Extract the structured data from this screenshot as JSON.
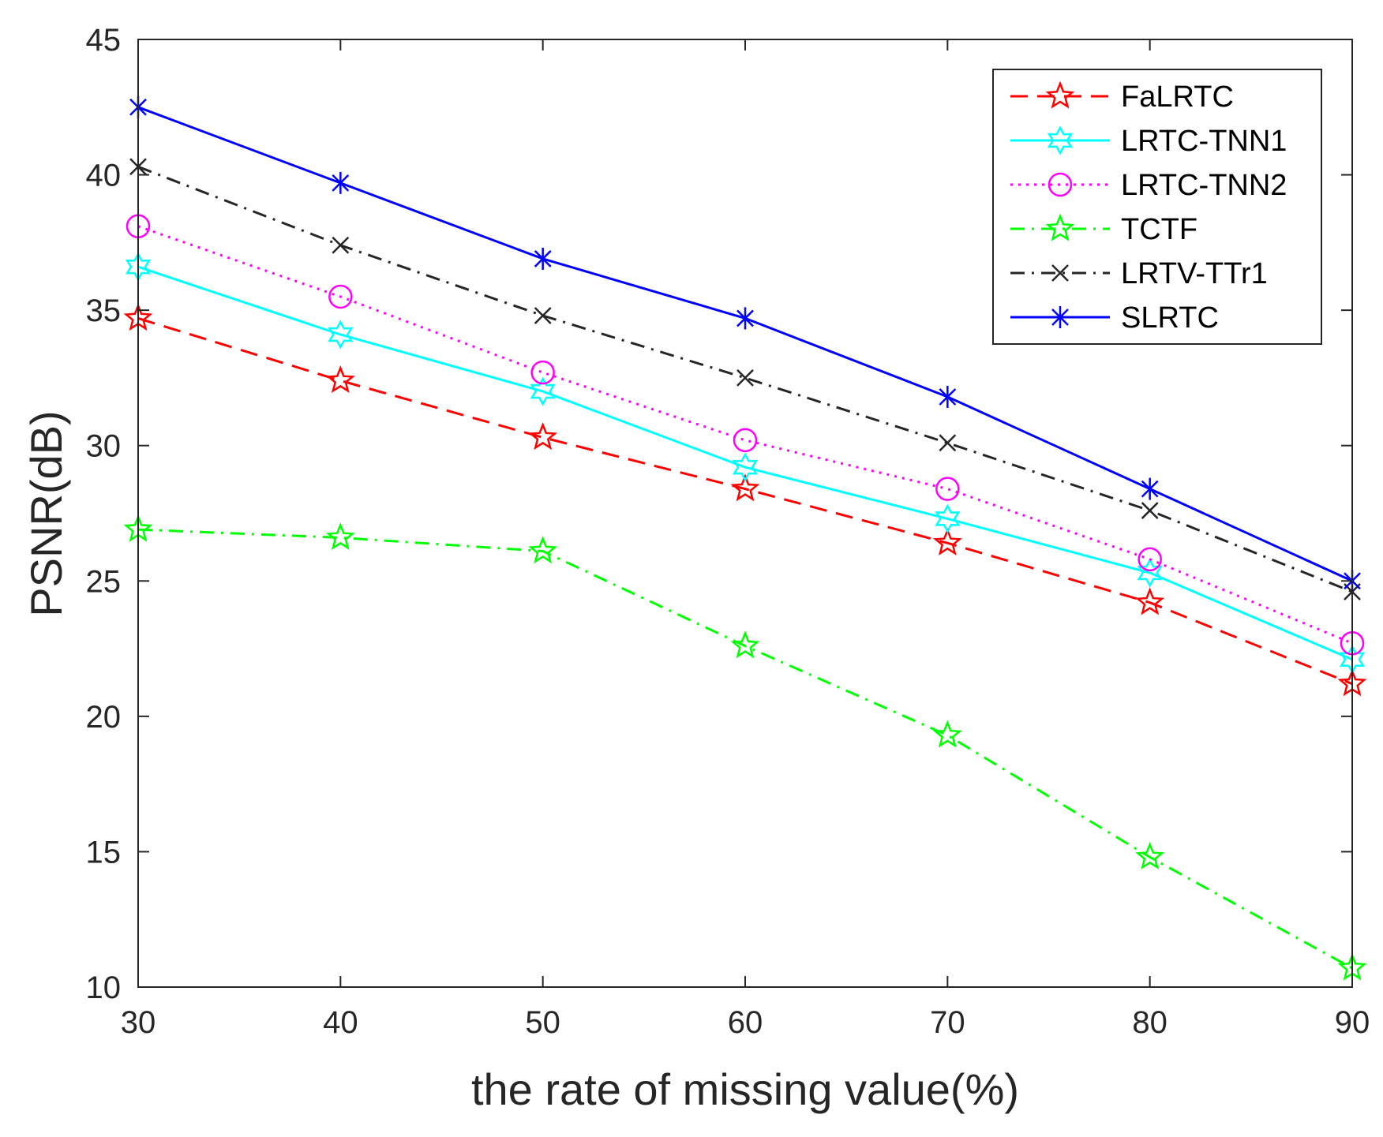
{
  "chart_data": {
    "type": "line",
    "title": "",
    "xlabel": "the rate of missing value(%)",
    "ylabel": "PSNR(dB)",
    "x": [
      30,
      40,
      50,
      60,
      70,
      80,
      90
    ],
    "xlim": [
      30,
      90
    ],
    "ylim": [
      10,
      45
    ],
    "xticks": [
      "30",
      "40",
      "50",
      "60",
      "70",
      "80",
      "90"
    ],
    "yticks": [
      "10",
      "15",
      "20",
      "25",
      "30",
      "35",
      "40",
      "45"
    ],
    "grid": false,
    "legend_position": "top-right",
    "series": [
      {
        "name": "FaLRTC",
        "color": "#ff0000",
        "dash": "dashed",
        "marker": "pentagram",
        "values": [
          34.7,
          32.4,
          30.3,
          28.4,
          26.4,
          24.2,
          21.2
        ]
      },
      {
        "name": "LRTC-TNN1",
        "color": "#00ffff",
        "dash": "solid",
        "marker": "hexagram",
        "values": [
          36.6,
          34.1,
          32.0,
          29.2,
          27.3,
          25.3,
          22.1
        ]
      },
      {
        "name": "LRTC-TNN2",
        "color": "#ff00ff",
        "dash": "dotted",
        "marker": "circle",
        "values": [
          38.1,
          35.5,
          32.7,
          30.2,
          28.4,
          25.8,
          22.7
        ]
      },
      {
        "name": "TCTF",
        "color": "#00ff00",
        "dash": "dashdot",
        "marker": "pentagram",
        "values": [
          26.9,
          26.6,
          26.1,
          22.6,
          19.3,
          14.8,
          10.7
        ]
      },
      {
        "name": "LRTV-TTr1",
        "color": "#262626",
        "dash": "dashdot",
        "marker": "x",
        "values": [
          40.3,
          37.4,
          34.8,
          32.5,
          30.1,
          27.6,
          24.6
        ]
      },
      {
        "name": "SLRTC",
        "color": "#0000ff",
        "dash": "solid",
        "marker": "asterisk",
        "values": [
          42.5,
          39.7,
          36.9,
          34.7,
          31.8,
          28.4,
          25.0
        ]
      }
    ]
  }
}
